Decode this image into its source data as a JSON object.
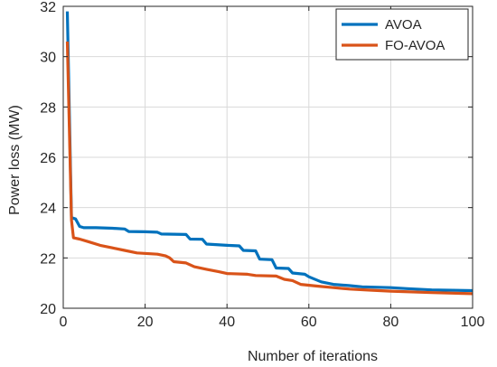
{
  "chart_data": {
    "type": "line",
    "xlabel": "Number of iterations",
    "ylabel": "Power loss (MW)",
    "xlim": [
      0,
      100
    ],
    "ylim": [
      20,
      32
    ],
    "xticks": [
      0,
      20,
      40,
      60,
      80,
      100
    ],
    "yticks": [
      20,
      22,
      24,
      26,
      28,
      30,
      32
    ],
    "grid": true,
    "legend_position": "top-right",
    "series": [
      {
        "name": "AVOA",
        "color": "#0072BD",
        "points": [
          [
            1,
            31.8
          ],
          [
            2,
            23.6
          ],
          [
            3,
            23.55
          ],
          [
            4,
            23.25
          ],
          [
            5,
            23.2
          ],
          [
            8,
            23.2
          ],
          [
            12,
            23.18
          ],
          [
            15,
            23.15
          ],
          [
            16,
            23.05
          ],
          [
            20,
            23.04
          ],
          [
            23,
            23.02
          ],
          [
            24,
            22.95
          ],
          [
            30,
            22.93
          ],
          [
            31,
            22.75
          ],
          [
            34,
            22.74
          ],
          [
            35,
            22.55
          ],
          [
            40,
            22.5
          ],
          [
            43,
            22.48
          ],
          [
            44,
            22.3
          ],
          [
            47,
            22.28
          ],
          [
            48,
            21.95
          ],
          [
            51,
            21.93
          ],
          [
            52,
            21.6
          ],
          [
            55,
            21.58
          ],
          [
            56,
            21.4
          ],
          [
            59,
            21.35
          ],
          [
            60,
            21.25
          ],
          [
            63,
            21.05
          ],
          [
            66,
            20.95
          ],
          [
            70,
            20.9
          ],
          [
            73,
            20.85
          ],
          [
            80,
            20.82
          ],
          [
            84,
            20.78
          ],
          [
            90,
            20.73
          ],
          [
            100,
            20.7
          ]
        ]
      },
      {
        "name": "FO-AVOA",
        "color": "#D95319",
        "points": [
          [
            1,
            30.6
          ],
          [
            2,
            23.5
          ],
          [
            2.5,
            22.8
          ],
          [
            4,
            22.75
          ],
          [
            6,
            22.65
          ],
          [
            9,
            22.5
          ],
          [
            12,
            22.4
          ],
          [
            15,
            22.3
          ],
          [
            18,
            22.2
          ],
          [
            23,
            22.15
          ],
          [
            25,
            22.08
          ],
          [
            26,
            22.0
          ],
          [
            27,
            21.85
          ],
          [
            30,
            21.8
          ],
          [
            32,
            21.65
          ],
          [
            35,
            21.55
          ],
          [
            38,
            21.45
          ],
          [
            40,
            21.38
          ],
          [
            45,
            21.35
          ],
          [
            47,
            21.3
          ],
          [
            52,
            21.28
          ],
          [
            54,
            21.15
          ],
          [
            56,
            21.1
          ],
          [
            58,
            20.95
          ],
          [
            62,
            20.88
          ],
          [
            66,
            20.82
          ],
          [
            70,
            20.76
          ],
          [
            75,
            20.72
          ],
          [
            80,
            20.68
          ],
          [
            90,
            20.62
          ],
          [
            100,
            20.58
          ]
        ]
      }
    ]
  }
}
